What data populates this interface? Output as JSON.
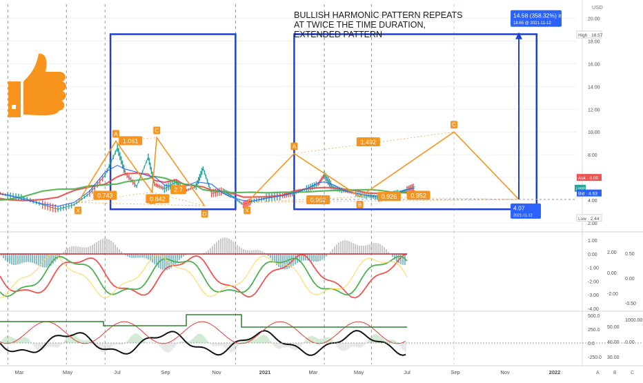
{
  "chart_data": {
    "type": "line",
    "currency": "USD",
    "annotation": [
      "BULLISH HARMONIC PATTERN REPEATS",
      "AT TWICE THE TIME DURATION,",
      "EXTENDED PATTERN"
    ],
    "price_axis": {
      "ylim": [
        2.0,
        21.0
      ],
      "ticks": [
        2.0,
        4.0,
        6.0,
        8.0,
        10.0,
        12.0,
        14.0,
        16.0,
        18.0,
        20.0
      ]
    },
    "time_axis": {
      "labels": [
        "Mar",
        "May",
        "Jul",
        "Sep",
        "Nov",
        "2021",
        "Mar",
        "May",
        "Jul",
        "Sep",
        "Nov",
        "2022"
      ],
      "bottom_buttons": [
        "A",
        "B",
        "C"
      ]
    },
    "price_series": {
      "name": "",
      "x": [
        "2020-01-01",
        "2020-01-20",
        "2020-02-10",
        "2020-03-05",
        "2020-03-25",
        "2020-04-15",
        "2020-05-05",
        "2020-05-25",
        "2020-06-10",
        "2020-06-20",
        "2020-07-05",
        "2020-07-20",
        "2020-07-28",
        "2020-08-10",
        "2020-08-25",
        "2020-09-05",
        "2020-09-20",
        "2020-09-29",
        "2020-10-10",
        "2020-10-25",
        "2020-11-05",
        "2020-11-20",
        "2020-12-01",
        "2020-12-20",
        "2021-01-10",
        "2021-01-25",
        "2021-02-10",
        "2021-02-25",
        "2021-03-05",
        "2021-03-15",
        "2021-03-30",
        "2021-04-15",
        "2021-05-01",
        "2021-05-15",
        "2021-05-30",
        "2021-06-10",
        "2021-06-20",
        "2021-06-30"
      ],
      "values": [
        4.8,
        4.4,
        4.2,
        3.6,
        3.2,
        3.6,
        4.6,
        6.2,
        8.6,
        6.4,
        5.2,
        7.8,
        5.4,
        5.0,
        5.6,
        4.8,
        5.2,
        6.8,
        4.6,
        4.8,
        4.4,
        3.6,
        3.9,
        4.2,
        4.4,
        4.6,
        5.0,
        5.4,
        6.2,
        5.2,
        4.8,
        4.6,
        4.4,
        4.2,
        4.5,
        4.7,
        4.9,
        5.2
      ]
    },
    "pattern_1": {
      "points": [
        {
          "label": "X",
          "x": "2020-04-20",
          "y": 3.8
        },
        {
          "label": "A",
          "x": "2020-06-08",
          "y": 9.2
        },
        {
          "label": "B",
          "x": "2020-07-25",
          "y": 4.7
        },
        {
          "label": "C",
          "x": "2020-07-31",
          "y": 9.5
        },
        {
          "label": "D",
          "x": "2020-10-01",
          "y": 3.5
        }
      ],
      "ratios": [
        {
          "text": "0.743",
          "x": "2020-05-25",
          "y": 4.4
        },
        {
          "text": "1.061",
          "x": "2020-06-27",
          "y": 9.2
        },
        {
          "text": "0.842",
          "x": "2020-08-01",
          "y": 4.1
        },
        {
          "text": "2.7",
          "x": "2020-08-28",
          "y": 4.9
        }
      ],
      "box": {
        "x0": "2020-06-01",
        "x1": "2020-11-10",
        "y0": 3.2,
        "y1": 18.6
      }
    },
    "pattern_2": {
      "points": [
        {
          "label": "X",
          "x": "2020-11-25",
          "y": 3.8
        },
        {
          "label": "A",
          "x": "2021-01-25",
          "y": 8.1
        },
        {
          "label": "B",
          "x": "2021-04-20",
          "y": 4.3
        },
        {
          "label": "C",
          "x": "2021-08-20",
          "y": 10.0
        },
        {
          "label": "D",
          "x": "2021-11-12",
          "y": 4.07
        }
      ],
      "ratios": [
        {
          "text": "0.962",
          "x": "2021-02-25",
          "y": 4.0
        },
        {
          "text": "1.492",
          "x": "2021-05-01",
          "y": 9.1
        },
        {
          "text": "0.926",
          "x": "2021-05-28",
          "y": 4.3
        },
        {
          "text": "0.952",
          "x": "2021-07-05",
          "y": 4.4
        }
      ],
      "box": {
        "x0": "2021-01-25",
        "x1": "2021-12-05",
        "y0": 3.2,
        "y1": 18.6
      }
    },
    "target": {
      "from": 4.07,
      "to": 18.65,
      "date": "2021-11-12",
      "label": "14.58 (358.32%) in",
      "sublabel": "18.65 @ 2021-11-12",
      "end_label": "4.07",
      "end_sublabel": "2021-11-12"
    },
    "price_tags": [
      {
        "text": "High · 18.57",
        "value": 18.57,
        "kind": "high"
      },
      {
        "text": "Ask · 6.00",
        "value": 6.0,
        "kind": "ask"
      },
      {
        "text": "USED",
        "value": 5.05,
        "kind": "last"
      },
      {
        "text": "Bid · 4.63",
        "value": 4.63,
        "kind": "bid"
      },
      {
        "text": "Low · 2.44",
        "value": 2.44,
        "kind": "low"
      }
    ],
    "indicator_1": {
      "ticks": [
        "1.00",
        "0.00",
        "-1.00",
        "-2.00",
        "-3.00",
        "-4.00"
      ],
      "mid_ticks": [
        "2.00",
        "0.00",
        "-2.00"
      ],
      "right_ticks": [
        "0.50",
        "0.00",
        "-0.50"
      ]
    },
    "indicator_2": {
      "ticks": [
        "500.0",
        "250.0",
        "0.0",
        "-250.0"
      ],
      "mid_ticks": [
        "50.00",
        "40.00",
        "30.00"
      ],
      "right_ticks": [
        "1000.00",
        "0.00"
      ]
    },
    "colors": {
      "pattern": "#f7941d",
      "box": "#1f3fd4",
      "ma_red": "#e74c4c",
      "ma_green": "#4caf50",
      "ma_blue": "#2962ff",
      "thumb": "#f7941d"
    }
  }
}
